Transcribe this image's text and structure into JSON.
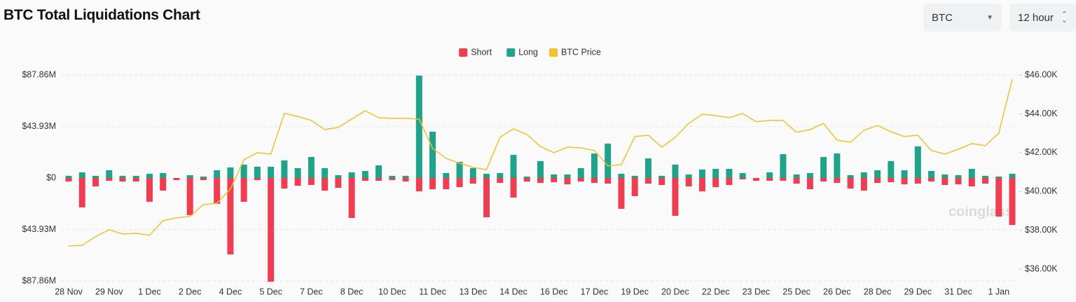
{
  "title": "BTC Total Liquidations Chart",
  "controls": {
    "coin": "BTC",
    "interval": "12 hour"
  },
  "chart_data": {
    "type": "bar",
    "watermark": "coinglass",
    "categories": [
      "28 Nov",
      null,
      null,
      "29 Nov",
      null,
      null,
      "1 Dec",
      null,
      null,
      "2 Dec",
      null,
      null,
      "4 Dec",
      null,
      null,
      "5 Dec",
      null,
      null,
      "7 Dec",
      null,
      null,
      "8 Dec",
      null,
      null,
      "10 Dec",
      null,
      null,
      "11 Dec",
      null,
      null,
      "13 Dec",
      null,
      null,
      "14 Dec",
      null,
      null,
      "16 Dec",
      null,
      null,
      "17 Dec",
      null,
      null,
      "19 Dec",
      null,
      null,
      "20 Dec",
      null,
      null,
      "22 Dec",
      null,
      null,
      "23 Dec",
      null,
      null,
      "25 Dec",
      null,
      null,
      "26 Dec",
      null,
      null,
      "28 Dec",
      null,
      null,
      "29 Dec",
      null,
      null,
      "31 Dec",
      null,
      null,
      "1 Jan",
      null
    ],
    "series": [
      {
        "name": "Short",
        "color": "#ef3d52",
        "type": "bar",
        "axis": "y",
        "values": [
          -3.0,
          -25.1,
          -7.2,
          -2.4,
          -3.0,
          -3.0,
          -20.3,
          -10.8,
          -1.8,
          -31.7,
          -1.8,
          -22.1,
          -65.2,
          -20.3,
          -1.8,
          -88.5,
          -9.0,
          -6.6,
          -6.0,
          -10.8,
          -8.4,
          -34.1,
          -2.4,
          -2.4,
          -1.8,
          -3.0,
          -11.4,
          -9.6,
          -9.6,
          -7.8,
          -4.8,
          -33.5,
          -4.2,
          -16.7,
          -3.0,
          -4.2,
          -3.6,
          -5.4,
          -3.0,
          -4.2,
          -4.8,
          -26.3,
          -15.5,
          -4.8,
          -6.0,
          -32.3,
          -7.2,
          -11.4,
          -7.8,
          -6.0,
          -1.2,
          -2.4,
          -2.4,
          -2.4,
          -4.8,
          -9.6,
          -3.0,
          -4.2,
          -9.0,
          -10.8,
          -4.2,
          -3.6,
          -5.4,
          -4.8,
          -3.0,
          -6.0,
          -5.4,
          -7.2,
          -4.8,
          -32.9,
          -40.1
        ]
      },
      {
        "name": "Long",
        "color": "#1fa38b",
        "type": "bar",
        "axis": "y",
        "values": [
          1.8,
          4.8,
          1.8,
          6.6,
          1.8,
          1.8,
          3.6,
          4.2,
          0,
          2.4,
          1.2,
          6.6,
          9.0,
          11.4,
          9.6,
          9.6,
          15.0,
          8.4,
          17.9,
          8.4,
          2.4,
          4.8,
          6.0,
          10.8,
          1.8,
          1.8,
          87.3,
          39.5,
          4.2,
          13.8,
          8.4,
          3.6,
          4.2,
          19.7,
          1.2,
          14.4,
          3.0,
          3.0,
          8.4,
          20.9,
          29.3,
          3.6,
          1.8,
          16.7,
          1.8,
          11.4,
          3.0,
          7.2,
          7.8,
          7.8,
          4.2,
          0,
          4.8,
          20.3,
          3.0,
          4.2,
          17.9,
          20.9,
          2.4,
          4.8,
          6.6,
          14.4,
          6.6,
          26.9,
          6.0,
          3.0,
          2.4,
          7.8,
          1.8,
          1.2,
          3.6
        ]
      },
      {
        "name": "BTC Price",
        "color": "#f2c12e",
        "type": "line",
        "axis": "y2",
        "values": [
          37200,
          37240,
          37680,
          38040,
          37820,
          37850,
          37750,
          38500,
          38650,
          38720,
          39330,
          39400,
          40130,
          41640,
          42000,
          41930,
          44020,
          43870,
          43660,
          43190,
          43300,
          43730,
          44160,
          43800,
          43770,
          43770,
          43730,
          42220,
          41710,
          41460,
          41240,
          41130,
          42790,
          43230,
          42940,
          42320,
          42000,
          42290,
          42250,
          42110,
          41320,
          41390,
          42830,
          42900,
          42290,
          42790,
          43510,
          43980,
          43910,
          43800,
          44020,
          43590,
          43660,
          43660,
          43050,
          43190,
          43510,
          42650,
          42540,
          43150,
          43400,
          43080,
          42830,
          42900,
          42110,
          41930,
          42180,
          42470,
          42360,
          43010,
          45780
        ]
      }
    ],
    "ylim": [
      -87.86,
      87.86
    ],
    "yticks": [
      {
        "value": 87.86,
        "label": "$87.86M"
      },
      {
        "value": 43.93,
        "label": "$43.93M"
      },
      {
        "value": 0,
        "label": "$0"
      },
      {
        "value": -43.93,
        "label": "$43.93M"
      },
      {
        "value": -87.86,
        "label": "$87.86M"
      }
    ],
    "y2lim": [
      35400,
      46000
    ],
    "y2ticks": [
      {
        "value": 46000,
        "label": "$46.00K"
      },
      {
        "value": 44000,
        "label": "$44.00K"
      },
      {
        "value": 42000,
        "label": "$42.00K"
      },
      {
        "value": 40000,
        "label": "$40.00K"
      },
      {
        "value": 38000,
        "label": "$38.00K"
      },
      {
        "value": 36000,
        "label": "$36.00K"
      }
    ],
    "grid": true,
    "legend": "top"
  }
}
